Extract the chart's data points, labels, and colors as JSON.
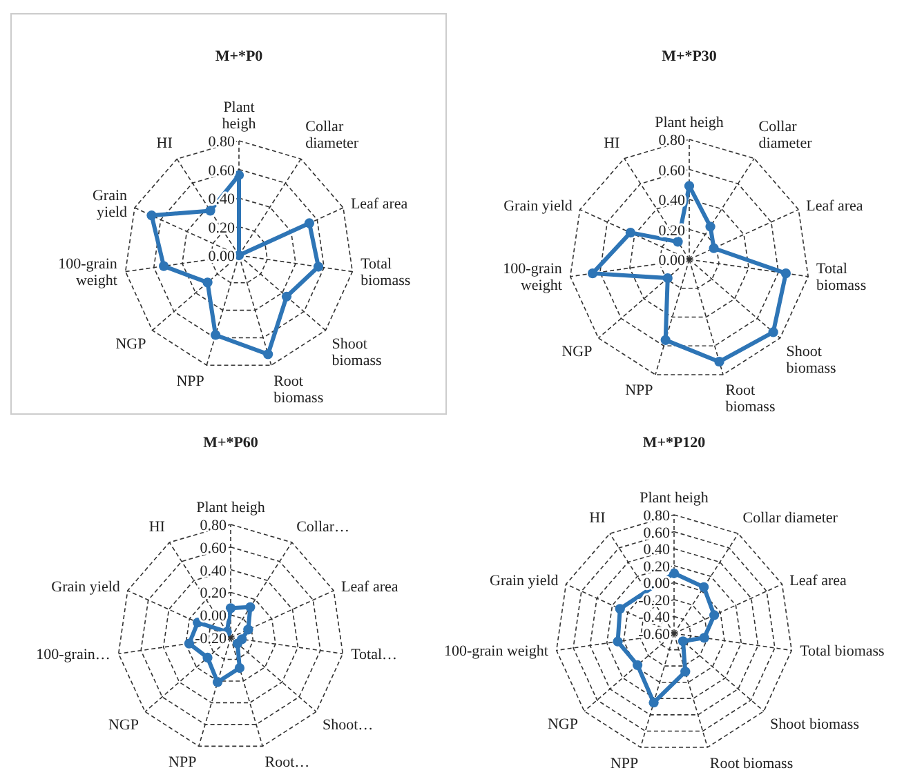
{
  "chart_data": [
    {
      "type": "radar",
      "title": "M+*P0",
      "categories": [
        "Plant heigh",
        "Collar diameter",
        "Leaf area",
        "Total biomass",
        "Shoot biomass",
        "Root biomass",
        "NPP",
        "NGP",
        "100-grain weight",
        "Grain yield",
        "HI"
      ],
      "series": [
        {
          "color": "#2e75b6",
          "values": [
            0.56,
            0.0,
            0.54,
            0.56,
            0.44,
            0.72,
            0.58,
            0.29,
            0.53,
            0.67,
            0.37
          ]
        }
      ],
      "ylim": [
        0,
        0.8
      ],
      "yticks": [
        {
          "value": 0,
          "label": "0.00"
        },
        {
          "value": 0.2,
          "label": "0.20"
        },
        {
          "value": 0.4,
          "label": "0.40"
        },
        {
          "value": 0.6,
          "label": "0.60"
        },
        {
          "value": 0.8,
          "label": "0.80"
        }
      ],
      "grid": true,
      "marker": "circle"
    },
    {
      "type": "radar",
      "title": "M+*P30",
      "categories": [
        "Plant heigh",
        "Collar diameter",
        "Leaf area",
        "Total biomass",
        "Shoot biomass",
        "Root biomass",
        "NPP",
        "NGP",
        "100-grain weight",
        "Grain yield",
        "HI"
      ],
      "series": [
        {
          "color": "#2e75b6",
          "values": [
            0.49,
            0.26,
            0.18,
            0.65,
            0.74,
            0.71,
            0.56,
            0.19,
            0.65,
            0.43,
            0.14
          ]
        }
      ],
      "ylim": [
        0,
        0.8
      ],
      "yticks": [
        {
          "value": 0,
          "label": "0.00"
        },
        {
          "value": 0.2,
          "label": "0.20"
        },
        {
          "value": 0.4,
          "label": "0.40"
        },
        {
          "value": 0.6,
          "label": "0.60"
        },
        {
          "value": 0.8,
          "label": "0.80"
        }
      ],
      "grid": true,
      "marker": "circle"
    },
    {
      "type": "radar",
      "title": "M+*P60",
      "categories": [
        "Plant heigh",
        "Collar…",
        "Leaf area",
        "Total…",
        "Shoot…",
        "Root…",
        "NPP",
        "NGP",
        "100-grain…",
        "Grain yield",
        "HI"
      ],
      "series": [
        {
          "color": "#2e75b6",
          "values": [
            0.06,
            0.12,
            -0.03,
            -0.1,
            -0.12,
            0.08,
            0.21,
            0.07,
            0.17,
            0.12,
            -0.14
          ]
        }
      ],
      "ylim": [
        -0.2,
        0.8
      ],
      "yticks": [
        {
          "value": -0.2,
          "label": "-0.20"
        },
        {
          "value": 0,
          "label": "0.00"
        },
        {
          "value": 0.2,
          "label": "0.20"
        },
        {
          "value": 0.4,
          "label": "0.40"
        },
        {
          "value": 0.6,
          "label": "0.60"
        },
        {
          "value": 0.8,
          "label": "0.80"
        }
      ],
      "grid": true,
      "marker": "circle"
    },
    {
      "type": "radar",
      "title": "M+*P120",
      "categories": [
        "Plant heigh",
        "Collar diameter",
        "Leaf area",
        "Total biomass",
        "Shoot biomass",
        "Root biomass",
        "NPP",
        "NGP",
        "100-grain weight",
        "Grain yield",
        "HI"
      ],
      "series": [
        {
          "color": "#2e75b6",
          "values": [
            0.11,
            0.05,
            -0.08,
            -0.24,
            -0.46,
            -0.13,
            0.25,
            -0.03,
            0.07,
            0.1,
            null
          ]
        }
      ],
      "ylim": [
        -0.6,
        0.8
      ],
      "yticks": [
        {
          "value": -0.6,
          "label": "-0.60"
        },
        {
          "value": -0.4,
          "label": "-0.40"
        },
        {
          "value": -0.2,
          "label": "-0.20"
        },
        {
          "value": 0,
          "label": "0.00"
        },
        {
          "value": 0.2,
          "label": "0.20"
        },
        {
          "value": 0.4,
          "label": "0.40"
        },
        {
          "value": 0.6,
          "label": "0.60"
        },
        {
          "value": 0.8,
          "label": "0.80"
        }
      ],
      "grid": true,
      "marker": "circle"
    }
  ]
}
